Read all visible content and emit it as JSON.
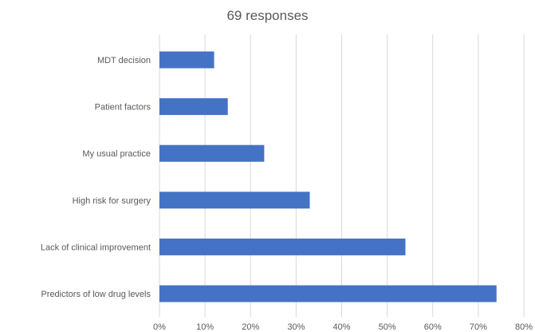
{
  "chart_data": {
    "type": "bar",
    "orientation": "horizontal",
    "title": "69 responses",
    "xlabel": "",
    "ylabel": "",
    "categories": [
      "MDT decision",
      "Patient factors",
      "My usual practice",
      "High risk for surgery",
      "Lack of clinical improvement",
      "Predictors of low drug levels"
    ],
    "values": [
      12,
      15,
      23,
      33,
      54,
      74
    ],
    "unit": "%",
    "xlim": [
      0,
      80
    ],
    "xticks": [
      0,
      10,
      20,
      30,
      40,
      50,
      60,
      70,
      80
    ],
    "xtick_labels": [
      "0%",
      "10%",
      "20%",
      "30%",
      "40%",
      "50%",
      "60%",
      "70%",
      "80%"
    ],
    "grid": "vertical",
    "legend": "none",
    "bar_color": "#4472C4",
    "grid_color": "#D9D9D9",
    "text_color": "#595959"
  }
}
